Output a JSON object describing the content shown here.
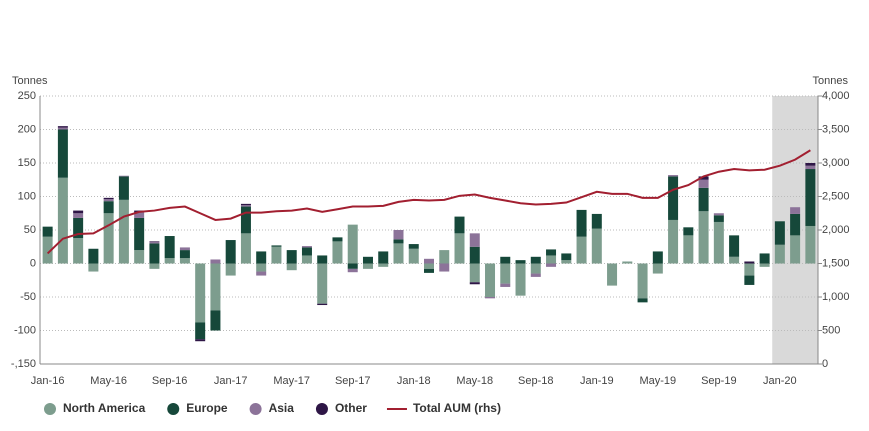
{
  "chart_data": {
    "type": "bar",
    "stacked": true,
    "y_axis_label": "Tonnes",
    "y2_axis_label": "Tonnes",
    "categories": [
      "Jan-16",
      null,
      null,
      null,
      "May-16",
      null,
      null,
      null,
      "Sep-16",
      null,
      null,
      null,
      "Jan-17",
      null,
      null,
      null,
      "May-17",
      null,
      null,
      null,
      "Sep-17",
      null,
      null,
      null,
      "Jan-18",
      null,
      null,
      null,
      "May-18",
      null,
      null,
      null,
      "Sep-18",
      null,
      null,
      null,
      "Jan-19",
      null,
      null,
      null,
      "May-19",
      null,
      null,
      null,
      "Sep-19",
      null,
      null,
      null,
      "Jan-20",
      null,
      null
    ],
    "series": [
      {
        "name": "North America",
        "color": "#7d9d8e",
        "values": [
          40,
          128,
          38,
          -12,
          75,
          95,
          20,
          -8,
          8,
          8,
          -88,
          -70,
          -18,
          45,
          -12,
          25,
          -10,
          12,
          -60,
          33,
          58,
          -8,
          -5,
          30,
          22,
          -8,
          20,
          45,
          -28,
          -50,
          -30,
          -48,
          -15,
          12,
          5,
          40,
          52,
          -33,
          3,
          -52,
          -15,
          65,
          42,
          78,
          62,
          10,
          -18,
          -5,
          28,
          42,
          56
        ]
      },
      {
        "name": "Europe",
        "color": "#16483a",
        "values": [
          15,
          72,
          30,
          22,
          18,
          35,
          48,
          30,
          33,
          12,
          -25,
          -30,
          35,
          40,
          18,
          2,
          20,
          12,
          12,
          6,
          -8,
          10,
          18,
          6,
          7,
          -6,
          0,
          25,
          25,
          0,
          10,
          5,
          10,
          9,
          10,
          40,
          22,
          0,
          0,
          -6,
          18,
          65,
          12,
          35,
          10,
          32,
          -14,
          15,
          35,
          32,
          85
        ]
      },
      {
        "name": "Asia",
        "color": "#8c7399",
        "values": [
          0,
          3,
          7,
          0,
          3,
          1,
          8,
          2,
          0,
          4,
          0,
          6,
          0,
          2,
          -6,
          0,
          0,
          2,
          0,
          0,
          -5,
          0,
          0,
          14,
          0,
          7,
          -12,
          0,
          20,
          -2,
          -5,
          0,
          -5,
          -5,
          0,
          0,
          0,
          0,
          0,
          0,
          0,
          2,
          0,
          12,
          3,
          0,
          0,
          0,
          0,
          10,
          5
        ]
      },
      {
        "name": "Other",
        "color": "#2e1646",
        "values": [
          0,
          2,
          4,
          0,
          2,
          0,
          3,
          1,
          0,
          0,
          -3,
          0,
          0,
          2,
          0,
          0,
          0,
          0,
          -2,
          0,
          0,
          0,
          0,
          0,
          0,
          0,
          0,
          0,
          -3,
          0,
          0,
          0,
          0,
          0,
          0,
          0,
          0,
          0,
          0,
          0,
          0,
          0,
          0,
          5,
          0,
          0,
          3,
          0,
          0,
          0,
          4
        ]
      },
      {
        "name": "Total AUM (rhs)",
        "color": "#a21f30",
        "type": "line",
        "axis": "y2",
        "values": [
          1650,
          1870,
          1940,
          1950,
          2070,
          2200,
          2270,
          2290,
          2330,
          2350,
          2250,
          2150,
          2170,
          2260,
          2260,
          2280,
          2290,
          2320,
          2270,
          2310,
          2350,
          2350,
          2360,
          2420,
          2450,
          2440,
          2450,
          2510,
          2530,
          2480,
          2440,
          2400,
          2380,
          2390,
          2410,
          2490,
          2570,
          2540,
          2540,
          2480,
          2480,
          2600,
          2670,
          2800,
          2870,
          2910,
          2890,
          2900,
          2960,
          3050,
          3190
        ]
      }
    ],
    "ylim": [
      -150,
      250
    ],
    "yticks": [
      {
        "value": -150,
        "label": "-,150"
      },
      -100,
      -50,
      0,
      50,
      100,
      150,
      200,
      250
    ],
    "y2lim": [
      0,
      4000
    ],
    "y2ticks": [
      0,
      500,
      {
        "value": 1000,
        "label": "1,000"
      },
      {
        "value": 1500,
        "label": "1,500"
      },
      {
        "value": 2000,
        "label": "2,000"
      },
      {
        "value": 2500,
        "label": "2,500"
      },
      {
        "value": 3000,
        "label": "3,000"
      },
      {
        "value": 3500,
        "label": "3,500"
      },
      {
        "value": 4000,
        "label": "4,000"
      }
    ],
    "grid": true,
    "highlight": {
      "start": 48,
      "end": 50
    },
    "legend": "bottom-left"
  }
}
